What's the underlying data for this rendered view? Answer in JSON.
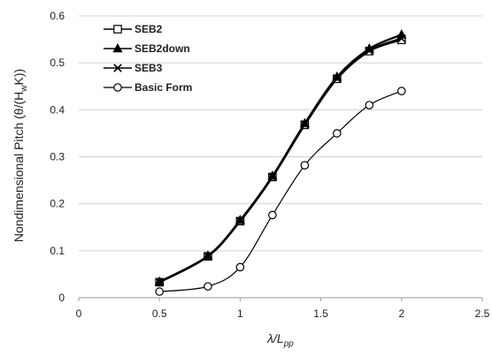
{
  "chart_data": {
    "type": "line",
    "title": "",
    "xlabel": "λ/L",
    "xlabel_sub": "pp",
    "ylabel": "Nondimensional Pitch (θ/(H",
    "ylabel_sub": "w",
    "ylabel_end": "K))",
    "xlim": [
      0,
      2.5
    ],
    "ylim": [
      0,
      0.6
    ],
    "xticks": [
      0,
      0.5,
      1,
      1.5,
      2,
      2.5
    ],
    "xtick_labels": [
      "0",
      "0.5",
      "1",
      "1.5",
      "2",
      "2.5"
    ],
    "yticks": [
      0,
      0.1,
      0.2,
      0.3,
      0.4,
      0.5,
      0.6
    ],
    "ytick_labels": [
      "0",
      "0.1",
      "0.2",
      "0.3",
      "0.4",
      "0.5",
      "0.6"
    ],
    "grid": "horizontal",
    "legend_position": "top-left",
    "series": [
      {
        "name": "SEB2",
        "marker": "square-open",
        "x": [
          0.5,
          0.8,
          1.0,
          1.2,
          1.4,
          1.6,
          1.8,
          2.0
        ],
        "y": [
          0.033,
          0.088,
          0.163,
          0.257,
          0.368,
          0.466,
          0.525,
          0.549
        ]
      },
      {
        "name": "SEB2down",
        "marker": "triangle-filled",
        "x": [
          0.5,
          0.8,
          1.0,
          1.2,
          1.4,
          1.6,
          1.8,
          2.0
        ],
        "y": [
          0.034,
          0.089,
          0.165,
          0.259,
          0.371,
          0.47,
          0.53,
          0.56
        ]
      },
      {
        "name": "SEB3",
        "marker": "x",
        "x": [
          0.5,
          0.8,
          1.0,
          1.2,
          1.4,
          1.6,
          1.8,
          2.0
        ],
        "y": [
          0.033,
          0.088,
          0.163,
          0.257,
          0.369,
          0.467,
          0.526,
          0.552
        ]
      },
      {
        "name": "Basic Form",
        "marker": "circle-open",
        "x": [
          0.5,
          0.8,
          1.0,
          1.2,
          1.4,
          1.6,
          1.8,
          2.0
        ],
        "y": [
          0.013,
          0.024,
          0.065,
          0.176,
          0.282,
          0.35,
          0.41,
          0.44
        ]
      }
    ]
  }
}
